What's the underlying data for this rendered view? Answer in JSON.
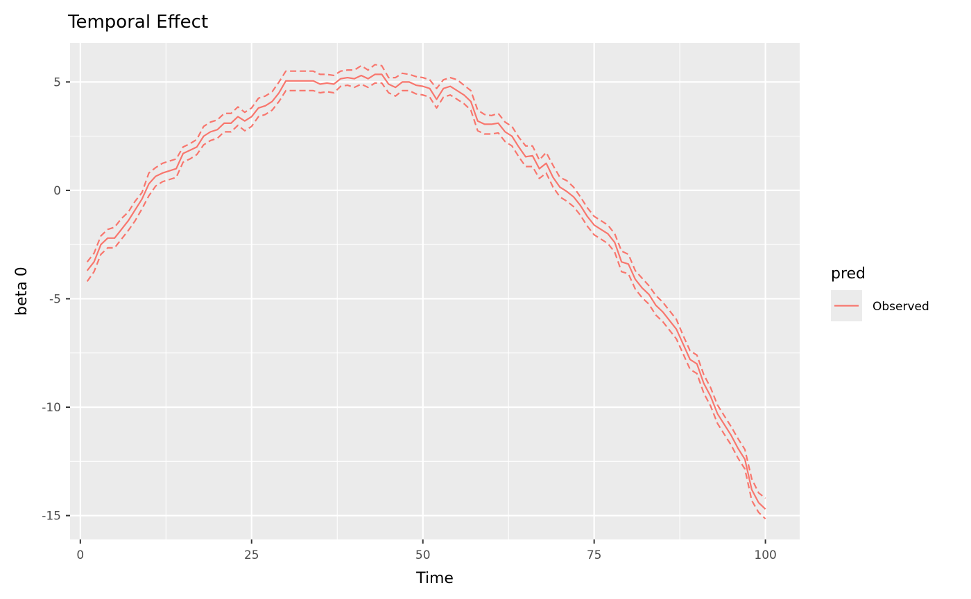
{
  "chart_data": {
    "type": "line",
    "title": "Temporal Effect",
    "xlabel": "Time",
    "ylabel": "beta 0",
    "xlim": [
      -1.5,
      105
    ],
    "ylim": [
      -16.1,
      6.8
    ],
    "x_ticks": [
      0,
      25,
      50,
      75,
      100
    ],
    "y_ticks": [
      5,
      0,
      -5,
      -10,
      -15
    ],
    "x_tick_labels": [
      "0",
      "25",
      "50",
      "75",
      "100"
    ],
    "y_tick_labels": [
      "5",
      "0",
      "-5",
      "-10",
      "-15"
    ],
    "grid": true,
    "legend": {
      "title": "pred",
      "position": "right",
      "entries": [
        "Observed"
      ]
    },
    "colors": {
      "series": "#f8766d",
      "panel": "#ebebeb",
      "grid": "#ffffff"
    },
    "x": [
      1,
      2,
      3,
      4,
      5,
      6,
      7,
      8,
      9,
      10,
      11,
      12,
      13,
      14,
      15,
      16,
      17,
      18,
      19,
      20,
      21,
      22,
      23,
      24,
      25,
      26,
      27,
      28,
      29,
      30,
      31,
      32,
      33,
      34,
      35,
      36,
      37,
      38,
      39,
      40,
      41,
      42,
      43,
      44,
      45,
      46,
      47,
      48,
      49,
      50,
      51,
      52,
      53,
      54,
      55,
      56,
      57,
      58,
      59,
      60,
      61,
      62,
      63,
      64,
      65,
      66,
      67,
      68,
      69,
      70,
      71,
      72,
      73,
      74,
      75,
      76,
      77,
      78,
      79,
      80,
      81,
      82,
      83,
      84,
      85,
      86,
      87,
      88,
      89,
      90,
      91,
      92,
      93,
      94,
      95,
      96,
      97,
      98,
      99,
      100
    ],
    "series": [
      {
        "name": "Observed",
        "style": "solid",
        "values": [
          -3.7,
          -3.3,
          -2.5,
          -2.2,
          -2.2,
          -1.8,
          -1.4,
          -0.9,
          -0.4,
          0.3,
          0.65,
          0.8,
          0.9,
          1.0,
          1.7,
          1.85,
          2.0,
          2.5,
          2.7,
          2.8,
          3.1,
          3.1,
          3.4,
          3.2,
          3.4,
          3.8,
          3.9,
          4.1,
          4.5,
          5.05,
          5.05,
          5.05,
          5.05,
          5.05,
          4.9,
          4.95,
          4.9,
          5.15,
          5.2,
          5.15,
          5.3,
          5.15,
          5.35,
          5.35,
          4.9,
          4.75,
          5.0,
          5.0,
          4.85,
          4.8,
          4.7,
          4.2,
          4.7,
          4.8,
          4.6,
          4.4,
          4.1,
          3.2,
          3.05,
          3.05,
          3.1,
          2.7,
          2.5,
          2.0,
          1.55,
          1.6,
          1.0,
          1.25,
          0.6,
          0.15,
          -0.05,
          -0.3,
          -0.7,
          -1.2,
          -1.6,
          -1.8,
          -2.0,
          -2.4,
          -3.3,
          -3.4,
          -4.1,
          -4.5,
          -4.8,
          -5.3,
          -5.6,
          -6.0,
          -6.4,
          -7.1,
          -7.8,
          -8.0,
          -8.9,
          -9.5,
          -10.3,
          -10.8,
          -11.3,
          -11.9,
          -12.4,
          -13.8,
          -14.4,
          -14.7
        ]
      },
      {
        "name": "",
        "style": "dashed",
        "values": [
          -3.3,
          -2.9,
          -2.1,
          -1.8,
          -1.7,
          -1.3,
          -1.0,
          -0.5,
          -0.1,
          0.8,
          1.05,
          1.25,
          1.35,
          1.45,
          2.0,
          2.15,
          2.35,
          2.95,
          3.15,
          3.25,
          3.55,
          3.55,
          3.85,
          3.6,
          3.8,
          4.25,
          4.35,
          4.55,
          5.0,
          5.5,
          5.5,
          5.5,
          5.5,
          5.5,
          5.35,
          5.35,
          5.3,
          5.5,
          5.55,
          5.55,
          5.75,
          5.55,
          5.8,
          5.75,
          5.2,
          5.2,
          5.4,
          5.35,
          5.25,
          5.2,
          5.1,
          4.7,
          5.1,
          5.2,
          5.1,
          4.85,
          4.6,
          3.7,
          3.5,
          3.45,
          3.55,
          3.15,
          2.95,
          2.45,
          2.05,
          2.05,
          1.4,
          1.75,
          1.15,
          0.6,
          0.45,
          0.15,
          -0.3,
          -0.8,
          -1.2,
          -1.4,
          -1.6,
          -2.0,
          -2.8,
          -2.95,
          -3.7,
          -4.05,
          -4.4,
          -4.85,
          -5.15,
          -5.55,
          -5.95,
          -6.7,
          -7.4,
          -7.6,
          -8.5,
          -9.1,
          -9.9,
          -10.4,
          -10.9,
          -11.45,
          -11.95,
          -13.3,
          -13.95,
          -14.2
        ]
      },
      {
        "name": "",
        "style": "dashed",
        "values": [
          -4.2,
          -3.75,
          -2.95,
          -2.65,
          -2.65,
          -2.25,
          -1.85,
          -1.4,
          -0.85,
          -0.25,
          0.2,
          0.4,
          0.5,
          0.6,
          1.3,
          1.45,
          1.65,
          2.1,
          2.3,
          2.4,
          2.7,
          2.7,
          3.0,
          2.75,
          2.95,
          3.4,
          3.5,
          3.7,
          4.1,
          4.6,
          4.6,
          4.6,
          4.6,
          4.6,
          4.5,
          4.55,
          4.5,
          4.8,
          4.85,
          4.75,
          4.9,
          4.75,
          4.95,
          4.95,
          4.5,
          4.35,
          4.6,
          4.6,
          4.45,
          4.4,
          4.3,
          3.8,
          4.3,
          4.4,
          4.2,
          4.0,
          3.7,
          2.75,
          2.6,
          2.6,
          2.65,
          2.25,
          2.05,
          1.55,
          1.1,
          1.1,
          0.55,
          0.8,
          0.15,
          -0.3,
          -0.5,
          -0.75,
          -1.15,
          -1.65,
          -2.05,
          -2.25,
          -2.45,
          -2.85,
          -3.75,
          -3.85,
          -4.55,
          -4.95,
          -5.25,
          -5.75,
          -6.05,
          -6.45,
          -6.85,
          -7.55,
          -8.25,
          -8.45,
          -9.35,
          -9.95,
          -10.75,
          -11.25,
          -11.75,
          -12.35,
          -12.85,
          -14.3,
          -14.85,
          -15.15
        ]
      }
    ]
  }
}
